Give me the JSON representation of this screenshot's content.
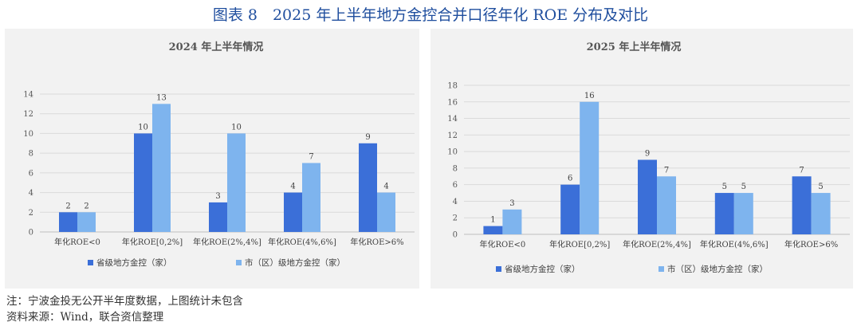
{
  "figure_title": "图表 8　2025 年上半年地方金控合并口径年化 ROE 分布及对比",
  "colors": {
    "provincial": "#3b6fd8",
    "municipal": "#7eb4ee",
    "title": "#1f4e9e",
    "panel_bg": "#f2f2f2"
  },
  "legend": {
    "provincial": "省级地方金控（家）",
    "municipal": "市（区）级地方金控（家）"
  },
  "chart_data": [
    {
      "type": "bar",
      "title": "2024 年上半年情况",
      "categories": [
        "年化ROE<0",
        "年化ROE[0,2%]",
        "年化ROE(2%,4%]",
        "年化ROE(4%,6%]",
        "年化ROE>6%"
      ],
      "series": [
        {
          "name": "省级地方金控（家）",
          "values": [
            2,
            10,
            3,
            4,
            9
          ]
        },
        {
          "name": "市（区）级地方金控（家）",
          "values": [
            2,
            13,
            10,
            7,
            4
          ]
        }
      ],
      "ylim": [
        0,
        14
      ],
      "yticks": [
        0,
        2,
        4,
        6,
        8,
        10,
        12,
        14
      ],
      "xlabel": "",
      "ylabel": "",
      "grid": true,
      "legend_position": "bottom"
    },
    {
      "type": "bar",
      "title": "2025 年上半年情况",
      "categories": [
        "年化ROE<0",
        "年化ROE[0,2%]",
        "年化ROE(2%,4%]",
        "年化ROE(4%,6%]",
        "年化ROE>6%"
      ],
      "series": [
        {
          "name": "省级地方金控（家）",
          "values": [
            1,
            6,
            9,
            5,
            7
          ]
        },
        {
          "name": "市（区）级地方金控（家）",
          "values": [
            3,
            16,
            7,
            5,
            5
          ]
        }
      ],
      "ylim": [
        0,
        18
      ],
      "yticks": [
        0,
        2,
        4,
        6,
        8,
        10,
        12,
        14,
        16,
        18
      ],
      "xlabel": "",
      "ylabel": "",
      "grid": true,
      "legend_position": "bottom"
    }
  ],
  "notes": {
    "note1": "注：宁波金投无公开半年度数据，上图统计未包含",
    "source": "资料来源：Wind，联合资信整理"
  }
}
